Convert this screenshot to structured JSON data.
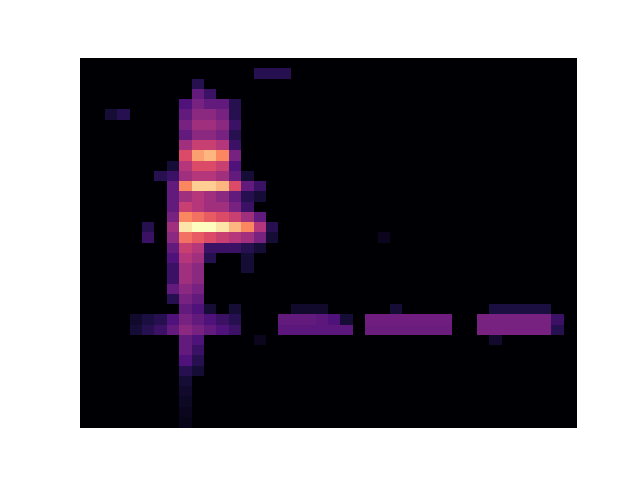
{
  "chart_data": {
    "type": "heatmap",
    "color": "magma",
    "zlim": [
      0,
      1
    ],
    "tick_labels": false,
    "grid": false,
    "values": [
      [
        0,
        0,
        0,
        0,
        0,
        0,
        0,
        0,
        0,
        0,
        0,
        0,
        0,
        0,
        0,
        0,
        0,
        0,
        0,
        0,
        0,
        0,
        0,
        0,
        0,
        0,
        0,
        0,
        0,
        0,
        0,
        0,
        0,
        0,
        0,
        0,
        0,
        0,
        0,
        0
      ],
      [
        0,
        0,
        0,
        0,
        0,
        0,
        0,
        0,
        0,
        0,
        0,
        0,
        0,
        0,
        0.15,
        0.15,
        0.15,
        0,
        0,
        0,
        0,
        0,
        0,
        0,
        0,
        0,
        0,
        0,
        0,
        0,
        0,
        0,
        0,
        0,
        0,
        0,
        0,
        0,
        0,
        0
      ],
      [
        0,
        0,
        0,
        0,
        0,
        0,
        0,
        0,
        0,
        0.15,
        0,
        0,
        0,
        0,
        0,
        0,
        0,
        0,
        0,
        0,
        0,
        0,
        0,
        0,
        0,
        0,
        0,
        0,
        0,
        0,
        0,
        0,
        0,
        0,
        0,
        0,
        0,
        0,
        0,
        0
      ],
      [
        0,
        0,
        0,
        0,
        0,
        0,
        0,
        0,
        0,
        0.3,
        0.2,
        0,
        0,
        0,
        0,
        0,
        0,
        0,
        0,
        0,
        0,
        0,
        0,
        0,
        0,
        0,
        0,
        0,
        0,
        0,
        0,
        0,
        0,
        0,
        0,
        0,
        0,
        0,
        0,
        0
      ],
      [
        0,
        0,
        0,
        0,
        0,
        0,
        0,
        0,
        0.25,
        0.35,
        0.3,
        0.3,
        0.15,
        0,
        0,
        0,
        0,
        0,
        0,
        0,
        0,
        0,
        0,
        0,
        0,
        0,
        0,
        0,
        0,
        0,
        0,
        0,
        0,
        0,
        0,
        0,
        0,
        0,
        0,
        0
      ],
      [
        0,
        0,
        0.1,
        0.15,
        0,
        0,
        0,
        0,
        0.3,
        0.4,
        0.4,
        0.35,
        0.15,
        0,
        0,
        0,
        0,
        0,
        0,
        0,
        0,
        0,
        0,
        0,
        0,
        0,
        0,
        0,
        0,
        0,
        0,
        0,
        0,
        0,
        0,
        0,
        0,
        0,
        0,
        0
      ],
      [
        0,
        0,
        0,
        0,
        0,
        0,
        0,
        0,
        0.35,
        0.45,
        0.45,
        0.4,
        0.2,
        0,
        0,
        0,
        0,
        0,
        0,
        0,
        0,
        0,
        0,
        0,
        0,
        0,
        0,
        0,
        0,
        0,
        0,
        0,
        0,
        0,
        0,
        0,
        0,
        0,
        0,
        0
      ],
      [
        0,
        0,
        0,
        0,
        0,
        0,
        0,
        0,
        0.3,
        0.4,
        0.4,
        0.35,
        0.15,
        0,
        0,
        0,
        0,
        0,
        0,
        0,
        0,
        0,
        0,
        0,
        0,
        0,
        0,
        0,
        0,
        0,
        0,
        0,
        0,
        0,
        0,
        0,
        0,
        0,
        0,
        0
      ],
      [
        0,
        0,
        0,
        0,
        0,
        0,
        0,
        0,
        0.45,
        0.55,
        0.55,
        0.5,
        0.2,
        0,
        0,
        0,
        0,
        0,
        0,
        0,
        0,
        0,
        0,
        0,
        0,
        0,
        0,
        0,
        0,
        0,
        0,
        0,
        0,
        0,
        0,
        0,
        0,
        0,
        0,
        0
      ],
      [
        0,
        0,
        0,
        0,
        0,
        0,
        0,
        0,
        0.6,
        0.8,
        0.85,
        0.75,
        0.35,
        0,
        0,
        0,
        0,
        0,
        0,
        0,
        0,
        0,
        0,
        0,
        0,
        0,
        0,
        0,
        0,
        0,
        0,
        0,
        0,
        0,
        0,
        0,
        0,
        0,
        0,
        0
      ],
      [
        0,
        0,
        0,
        0,
        0,
        0,
        0,
        0.1,
        0.5,
        0.6,
        0.6,
        0.55,
        0.25,
        0,
        0,
        0,
        0,
        0,
        0,
        0,
        0,
        0,
        0,
        0,
        0,
        0,
        0,
        0,
        0,
        0,
        0,
        0,
        0,
        0,
        0,
        0,
        0,
        0,
        0,
        0
      ],
      [
        0,
        0,
        0,
        0,
        0,
        0,
        0.15,
        0.2,
        0.45,
        0.5,
        0.5,
        0.45,
        0.3,
        0.1,
        0,
        0,
        0,
        0,
        0,
        0,
        0,
        0,
        0,
        0,
        0,
        0,
        0,
        0,
        0,
        0,
        0,
        0,
        0,
        0,
        0,
        0,
        0,
        0,
        0,
        0
      ],
      [
        0,
        0,
        0,
        0,
        0,
        0,
        0,
        0.3,
        0.75,
        0.9,
        0.9,
        0.85,
        0.6,
        0.3,
        0.2,
        0,
        0,
        0,
        0,
        0,
        0,
        0,
        0,
        0,
        0,
        0,
        0,
        0,
        0,
        0,
        0,
        0,
        0,
        0,
        0,
        0,
        0,
        0,
        0,
        0
      ],
      [
        0,
        0,
        0,
        0,
        0,
        0,
        0,
        0.3,
        0.45,
        0.5,
        0.45,
        0.4,
        0.3,
        0.15,
        0.1,
        0,
        0,
        0,
        0,
        0,
        0,
        0,
        0,
        0,
        0,
        0,
        0,
        0,
        0,
        0,
        0,
        0,
        0,
        0,
        0,
        0,
        0,
        0,
        0,
        0
      ],
      [
        0,
        0,
        0,
        0,
        0,
        0,
        0,
        0.3,
        0.55,
        0.5,
        0.45,
        0.45,
        0.35,
        0.2,
        0,
        0,
        0,
        0,
        0,
        0,
        0,
        0,
        0,
        0,
        0,
        0,
        0,
        0,
        0,
        0,
        0,
        0,
        0,
        0,
        0,
        0,
        0,
        0,
        0,
        0
      ],
      [
        0,
        0,
        0,
        0,
        0,
        0,
        0,
        0.35,
        0.75,
        0.7,
        0.65,
        0.6,
        0.55,
        0.45,
        0.3,
        0,
        0,
        0,
        0,
        0,
        0,
        0,
        0,
        0,
        0,
        0,
        0,
        0,
        0,
        0,
        0,
        0,
        0,
        0,
        0,
        0,
        0,
        0,
        0,
        0
      ],
      [
        0,
        0,
        0,
        0,
        0,
        0.15,
        0,
        0.45,
        0.95,
        1,
        1,
        0.95,
        0.85,
        0.75,
        0.5,
        0.15,
        0,
        0,
        0,
        0,
        0,
        0,
        0,
        0,
        0,
        0,
        0,
        0,
        0,
        0,
        0,
        0,
        0,
        0,
        0,
        0,
        0,
        0,
        0,
        0
      ],
      [
        0,
        0,
        0,
        0,
        0,
        0.2,
        0,
        0.4,
        0.7,
        0.65,
        0.6,
        0.55,
        0.5,
        0.45,
        0.35,
        0.1,
        0,
        0,
        0,
        0,
        0,
        0,
        0,
        0,
        0.05,
        0,
        0,
        0,
        0,
        0,
        0,
        0,
        0,
        0,
        0,
        0,
        0,
        0,
        0,
        0
      ],
      [
        0,
        0,
        0,
        0,
        0,
        0,
        0,
        0.3,
        0.55,
        0.5,
        0.2,
        0.2,
        0.2,
        0.15,
        0.1,
        0,
        0,
        0,
        0,
        0,
        0,
        0,
        0,
        0,
        0,
        0,
        0,
        0,
        0,
        0,
        0,
        0,
        0,
        0,
        0,
        0,
        0,
        0,
        0,
        0
      ],
      [
        0,
        0,
        0,
        0,
        0,
        0,
        0,
        0.25,
        0.5,
        0.45,
        0.15,
        0,
        0,
        0.1,
        0,
        0,
        0,
        0,
        0,
        0,
        0,
        0,
        0,
        0,
        0,
        0,
        0,
        0,
        0,
        0,
        0,
        0,
        0,
        0,
        0,
        0,
        0,
        0,
        0,
        0
      ],
      [
        0,
        0,
        0,
        0,
        0,
        0,
        0,
        0.2,
        0.45,
        0.4,
        0,
        0,
        0,
        0.1,
        0,
        0,
        0,
        0,
        0,
        0,
        0,
        0,
        0,
        0,
        0,
        0,
        0,
        0,
        0,
        0,
        0,
        0,
        0,
        0,
        0,
        0,
        0,
        0,
        0,
        0
      ],
      [
        0,
        0,
        0,
        0,
        0,
        0,
        0,
        0.2,
        0.45,
        0.4,
        0,
        0,
        0,
        0,
        0,
        0,
        0,
        0,
        0,
        0,
        0,
        0,
        0,
        0,
        0,
        0,
        0,
        0,
        0,
        0,
        0,
        0,
        0,
        0,
        0,
        0,
        0,
        0,
        0,
        0
      ],
      [
        0,
        0,
        0,
        0,
        0,
        0,
        0,
        0.3,
        0.4,
        0.35,
        0,
        0,
        0,
        0,
        0,
        0,
        0,
        0,
        0,
        0,
        0,
        0,
        0,
        0,
        0,
        0,
        0,
        0,
        0,
        0,
        0,
        0,
        0,
        0,
        0,
        0,
        0,
        0,
        0,
        0
      ],
      [
        0,
        0,
        0,
        0,
        0,
        0,
        0,
        0.15,
        0.35,
        0.3,
        0,
        0,
        0,
        0,
        0,
        0,
        0,
        0,
        0,
        0,
        0,
        0,
        0,
        0,
        0,
        0,
        0,
        0,
        0,
        0,
        0,
        0,
        0,
        0,
        0,
        0,
        0,
        0,
        0,
        0
      ],
      [
        0,
        0,
        0,
        0,
        0,
        0,
        0,
        0,
        0.3,
        0.25,
        0.1,
        0,
        0.1,
        0,
        0,
        0,
        0,
        0.08,
        0.08,
        0.08,
        0,
        0,
        0,
        0,
        0,
        0.1,
        0,
        0,
        0,
        0,
        0,
        0,
        0,
        0.12,
        0.12,
        0.12,
        0.12,
        0.12,
        0,
        0
      ],
      [
        0,
        0,
        0,
        0,
        0.08,
        0.12,
        0.15,
        0.25,
        0.35,
        0.3,
        0.25,
        0.2,
        0.15,
        0,
        0,
        0,
        0.3,
        0.3,
        0.3,
        0.28,
        0.25,
        0.1,
        0,
        0.33,
        0.33,
        0.33,
        0.33,
        0.33,
        0.33,
        0.33,
        0,
        0,
        0.35,
        0.35,
        0.35,
        0.35,
        0.35,
        0.35,
        0.2,
        0
      ],
      [
        0,
        0,
        0,
        0,
        0.1,
        0.15,
        0.2,
        0.3,
        0.4,
        0.35,
        0.3,
        0.25,
        0.2,
        0,
        0,
        0,
        0.28,
        0.28,
        0.28,
        0.28,
        0.28,
        0.28,
        0,
        0.32,
        0.32,
        0.32,
        0.32,
        0.32,
        0.32,
        0.32,
        0,
        0,
        0.35,
        0.35,
        0.35,
        0.35,
        0.35,
        0.35,
        0.15,
        0
      ],
      [
        0,
        0,
        0,
        0,
        0,
        0,
        0,
        0,
        0.3,
        0.25,
        0,
        0,
        0,
        0,
        0.05,
        0,
        0,
        0,
        0,
        0,
        0,
        0,
        0,
        0,
        0,
        0,
        0,
        0,
        0,
        0,
        0,
        0,
        0,
        0.08,
        0,
        0,
        0,
        0,
        0,
        0
      ],
      [
        0,
        0,
        0,
        0,
        0,
        0,
        0,
        0,
        0.3,
        0.2,
        0,
        0,
        0,
        0,
        0,
        0,
        0,
        0,
        0,
        0,
        0,
        0,
        0,
        0,
        0,
        0,
        0,
        0,
        0,
        0,
        0,
        0,
        0,
        0,
        0,
        0,
        0,
        0,
        0,
        0
      ],
      [
        0,
        0,
        0,
        0,
        0,
        0,
        0,
        0,
        0.25,
        0.15,
        0,
        0,
        0,
        0,
        0,
        0,
        0,
        0,
        0,
        0,
        0,
        0,
        0,
        0,
        0,
        0,
        0,
        0,
        0,
        0,
        0,
        0,
        0,
        0,
        0,
        0,
        0,
        0,
        0,
        0
      ],
      [
        0,
        0,
        0,
        0,
        0,
        0,
        0,
        0,
        0.15,
        0.1,
        0,
        0,
        0,
        0,
        0,
        0,
        0,
        0,
        0,
        0,
        0,
        0,
        0,
        0,
        0,
        0,
        0,
        0,
        0,
        0,
        0,
        0,
        0,
        0,
        0,
        0,
        0,
        0,
        0,
        0
      ],
      [
        0,
        0,
        0,
        0,
        0,
        0,
        0,
        0,
        0.1,
        0,
        0,
        0,
        0,
        0,
        0,
        0,
        0,
        0,
        0,
        0,
        0,
        0,
        0,
        0,
        0,
        0,
        0,
        0,
        0,
        0,
        0,
        0,
        0,
        0,
        0,
        0,
        0,
        0,
        0,
        0
      ],
      [
        0,
        0,
        0,
        0,
        0,
        0,
        0,
        0,
        0.08,
        0,
        0,
        0,
        0,
        0,
        0,
        0,
        0,
        0,
        0,
        0,
        0,
        0,
        0,
        0,
        0,
        0,
        0,
        0,
        0,
        0,
        0,
        0,
        0,
        0,
        0,
        0,
        0,
        0,
        0,
        0
      ],
      [
        0,
        0,
        0,
        0,
        0,
        0,
        0,
        0,
        0.06,
        0,
        0,
        0,
        0,
        0,
        0,
        0,
        0,
        0,
        0,
        0,
        0,
        0,
        0,
        0,
        0,
        0,
        0,
        0,
        0,
        0,
        0,
        0,
        0,
        0,
        0,
        0,
        0,
        0,
        0,
        0
      ],
      [
        0,
        0,
        0,
        0,
        0,
        0,
        0,
        0,
        0.05,
        0,
        0,
        0,
        0,
        0,
        0,
        0,
        0,
        0,
        0,
        0,
        0,
        0,
        0,
        0,
        0,
        0,
        0,
        0,
        0,
        0,
        0,
        0,
        0,
        0,
        0,
        0,
        0,
        0,
        0,
        0
      ],
      [
        0,
        0,
        0,
        0,
        0,
        0,
        0,
        0,
        0.04,
        0,
        0,
        0,
        0,
        0,
        0,
        0,
        0,
        0,
        0,
        0,
        0,
        0,
        0,
        0,
        0,
        0,
        0,
        0,
        0,
        0,
        0,
        0,
        0,
        0,
        0,
        0,
        0,
        0,
        0,
        0
      ]
    ]
  }
}
